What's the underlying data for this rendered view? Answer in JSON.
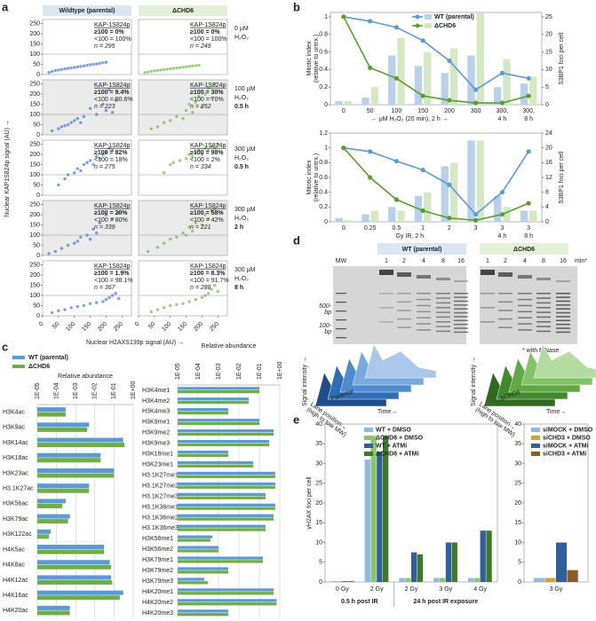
{
  "panel_labels": [
    "a",
    "b",
    "c",
    "d",
    "e"
  ],
  "chart_data": [
    {
      "type": "scatter",
      "ylabel": "Nuclear KAP1S824p signal (AU) →",
      "xlabel": "Nuclear H2AXS139p signal (AU) →",
      "xlim": [
        0,
        280
      ],
      "ylim": [
        0,
        270
      ],
      "xticks": [
        0,
        50,
        100,
        150,
        200,
        250
      ],
      "yticks": [
        0,
        50,
        100,
        150,
        200,
        250
      ],
      "threshold": 100,
      "columns": [
        {
          "name": "Wildtype (parental)",
          "color": "#3b6fd1",
          "header_color": "#dbe6f3"
        },
        {
          "name": "ΔCHD6",
          "color": "#6cb33a",
          "header_color": "#e3efd6"
        }
      ],
      "rows": [
        {
          "label": [
            "0 µM",
            "H₂O₂"
          ],
          "shaded": false
        },
        {
          "label": [
            "100 µM",
            "H₂O₂",
            "0.5 h"
          ],
          "shaded": true
        },
        {
          "label": [
            "300 µM",
            "H₂O₂",
            "0.5 h"
          ],
          "shaded": false
        },
        {
          "label": [
            "300 µM",
            "H₂O₂",
            "2 h"
          ],
          "shaded": true
        },
        {
          "label": [
            "300 µM",
            "H₂O₂",
            "8 h"
          ],
          "shaded": false
        }
      ],
      "panels": [
        {
          "stats": [
            "KAP-1S824p",
            "≥100 = 0%",
            "<100 = 100%",
            "n = 295"
          ],
          "x": [
            20,
            30,
            40,
            50,
            60,
            70,
            80,
            90,
            100,
            110,
            120,
            130,
            140,
            150,
            160,
            170,
            180,
            190,
            200
          ],
          "y": [
            10,
            15,
            20,
            22,
            25,
            28,
            30,
            32,
            35,
            38,
            40,
            42,
            45,
            48,
            50,
            52,
            55,
            58,
            60
          ]
        },
        {
          "stats": [
            "KAP-1S824p",
            "≥100 = 0%",
            "<100 = 100%",
            "n = 249"
          ],
          "x": [
            20,
            30,
            40,
            50,
            60,
            70,
            80,
            90,
            100,
            110,
            120,
            130,
            140,
            150,
            160,
            170,
            180,
            190
          ],
          "y": [
            10,
            12,
            15,
            18,
            20,
            22,
            24,
            26,
            28,
            30,
            32,
            34,
            36,
            38,
            40,
            42,
            44,
            45
          ]
        },
        {
          "stats": [
            "KAP-1S824p",
            "≥100 = 9.4%",
            "<100 = 90.6%",
            "n = 223"
          ],
          "x": [
            30,
            50,
            60,
            70,
            80,
            90,
            100,
            110,
            120,
            130,
            150,
            170,
            190,
            200,
            210,
            220,
            230
          ],
          "y": [
            20,
            30,
            40,
            45,
            50,
            60,
            70,
            80,
            60,
            90,
            130,
            100,
            150,
            120,
            220,
            110,
            170
          ]
        },
        {
          "stats": [
            "KAP-1S824p",
            "≥100 = 30%",
            "<100 = 70%",
            "n = 252"
          ],
          "x": [
            40,
            60,
            80,
            100,
            120,
            140,
            150,
            160,
            170,
            180,
            190,
            200,
            210,
            220,
            230,
            240
          ],
          "y": [
            30,
            40,
            60,
            70,
            90,
            80,
            120,
            150,
            110,
            160,
            190,
            140,
            200,
            230,
            180,
            250
          ]
        },
        {
          "stats": [
            "KAP-1S824p",
            "≥100 = 82%",
            "<100 = 18%",
            "n = 275"
          ],
          "x": [
            50,
            70,
            80,
            100,
            110,
            120,
            130,
            140,
            150,
            160,
            170,
            180,
            190,
            200,
            210,
            220
          ],
          "y": [
            50,
            80,
            100,
            110,
            130,
            120,
            150,
            160,
            170,
            150,
            190,
            180,
            200,
            210,
            230,
            220
          ]
        },
        {
          "stats": [
            "KAP-1S824p",
            "≥100 = 98%",
            "<100 = 2%",
            "n = 334"
          ],
          "x": [
            80,
            100,
            110,
            130,
            150,
            160,
            170,
            180,
            190,
            200,
            210,
            220,
            230,
            240,
            250
          ],
          "y": [
            110,
            150,
            160,
            170,
            180,
            200,
            190,
            210,
            220,
            200,
            230,
            220,
            240,
            230,
            250
          ]
        },
        {
          "stats": [
            "KAP-1S824p",
            "≥100 = 20%",
            "<100 = 80%",
            "n = 339"
          ],
          "x": [
            20,
            40,
            60,
            80,
            100,
            110,
            120,
            140,
            150,
            160,
            170,
            180,
            200,
            220,
            240
          ],
          "y": [
            10,
            20,
            35,
            50,
            60,
            70,
            90,
            100,
            80,
            130,
            110,
            160,
            200,
            180,
            210
          ]
        },
        {
          "stats": [
            "KAP-1S824p",
            "≥100 = 58%",
            "<100 = 42%",
            "n = 221"
          ],
          "x": [
            30,
            60,
            80,
            100,
            120,
            140,
            150,
            160,
            170,
            180,
            200,
            210,
            220,
            230,
            240
          ],
          "y": [
            20,
            40,
            60,
            80,
            90,
            110,
            100,
            140,
            120,
            160,
            150,
            200,
            180,
            220,
            230
          ]
        },
        {
          "stats": [
            "KAP-1S824p",
            "≥100 = 1.9%",
            "<100 = 98.1%",
            "n = 367"
          ],
          "x": [
            30,
            50,
            70,
            90,
            110,
            130,
            150,
            170,
            190,
            200,
            210,
            220,
            230,
            240
          ],
          "y": [
            15,
            25,
            30,
            40,
            45,
            50,
            60,
            65,
            70,
            80,
            90,
            100,
            110,
            85
          ]
        },
        {
          "stats": [
            "KAP-1S824p",
            "≥100 = 8.3%",
            "<100 = 91.7%",
            "n = 288"
          ],
          "x": [
            40,
            60,
            80,
            100,
            120,
            140,
            160,
            180,
            200,
            210,
            220,
            230,
            240,
            250
          ],
          "y": [
            20,
            30,
            40,
            50,
            55,
            60,
            70,
            80,
            90,
            100,
            110,
            130,
            150,
            120
          ]
        }
      ]
    },
    {
      "type": "combo",
      "legend": true,
      "categories": [
        "0",
        "50",
        "100",
        "150",
        "200",
        "300",
        "300,",
        "300,"
      ],
      "subcategories": [
        null,
        null,
        null,
        null,
        null,
        null,
        "4 h",
        "8 h"
      ],
      "xlabel": "← µM H₂O₂ (20 min), 2 h →",
      "ylabel": [
        "Mitotic index",
        "(relative to untrx.)"
      ],
      "y2label": "53BP1 foci per cell",
      "ylim": [
        0,
        1.05
      ],
      "yticks": [
        0,
        0.2,
        0.4,
        0.6,
        0.8,
        1
      ],
      "y2lim": [
        0,
        26.25
      ],
      "y2ticks": [
        0,
        5,
        10,
        15,
        20,
        25
      ],
      "series": [
        {
          "name": "WT (parental)",
          "color": "#5b9bd5",
          "values": [
            1,
            0.95,
            0.88,
            0.73,
            0.5,
            0.17,
            0.36,
            0.3
          ]
        },
        {
          "name": "ΔCHD6",
          "color": "#5a9e2f",
          "values": [
            1,
            0.42,
            0.3,
            0.1,
            0.05,
            0.02,
            0.02,
            0.1
          ]
        }
      ],
      "bar_series": [
        {
          "color": "#b9d0ea",
          "axis": "y2",
          "values": [
            1,
            2,
            14,
            11,
            9,
            14,
            5,
            6
          ]
        },
        {
          "color": "#d5e8c4",
          "axis": "y2",
          "values": [
            1,
            5,
            19,
            15,
            16,
            26,
            13,
            8
          ]
        }
      ]
    },
    {
      "type": "combo",
      "legend": false,
      "categories": [
        "0",
        "0.25",
        "0.5",
        "1",
        "2",
        "3",
        "3",
        "3"
      ],
      "subcategories": [
        null,
        null,
        null,
        null,
        null,
        null,
        "4 h",
        "8 h"
      ],
      "xlabel": "Gy IR, 2 h",
      "ylabel": [
        "Mitotic index",
        "(relative to untrx.)"
      ],
      "y2label": "53BP1 foci per cell",
      "ylim": [
        0,
        1.2
      ],
      "yticks": [
        0,
        0.2,
        0.4,
        0.6,
        0.8,
        1,
        1.2
      ],
      "y2lim": [
        0,
        24
      ],
      "y2ticks": [
        0,
        4,
        8,
        12,
        16,
        20,
        24
      ],
      "series": [
        {
          "name": "WT (parental)",
          "color": "#5b9bd5",
          "values": [
            1,
            0.95,
            0.82,
            0.7,
            0.5,
            0.1,
            0.4,
            0.95
          ]
        },
        {
          "name": "ΔCHD6",
          "color": "#5a9e2f",
          "values": [
            1,
            0.6,
            0.3,
            0.15,
            0.05,
            0.02,
            0.1,
            0.25
          ]
        }
      ],
      "bar_series": [
        {
          "color": "#b9d0ea",
          "axis": "y2",
          "values": [
            1,
            2,
            4,
            7,
            15,
            22,
            7,
            3
          ]
        },
        {
          "color": "#d5e8c4",
          "axis": "y2",
          "values": [
            0.5,
            3,
            3,
            8,
            16,
            22,
            4,
            3
          ]
        }
      ]
    },
    {
      "type": "hbar",
      "title": "Relative abundance",
      "log": true,
      "legend": true,
      "xlim": [
        1e-05,
        1
      ],
      "xticks": [
        {
          "value": 1e-05,
          "label": "1E-05"
        },
        {
          "value": 0.0001,
          "label": "1E-04"
        },
        {
          "value": 0.001,
          "label": "1E-03"
        },
        {
          "value": 0.01,
          "label": "1E-02"
        },
        {
          "value": 0.1,
          "label": "1E-01"
        },
        {
          "value": 1,
          "label": "1E+00"
        }
      ],
      "categories": [
        "H3K4ac",
        "H3K9ac",
        "H3K14ac",
        "H3K18ac",
        "H3K23ac",
        "H3.1K27ac",
        "H3K56ac",
        "H3K79ac",
        "H3K122ac",
        "H4K5ac",
        "H4K8ac",
        "H4K12ac",
        "H4K16ac",
        "H4K20ac"
      ],
      "series": [
        {
          "name": "WT (parental)",
          "color": "#5b9bd5",
          "values": [
            0.0003,
            0.005,
            0.3,
            0.02,
            0.1,
            0.005,
            0.0003,
            0.0005,
            5e-05,
            0.03,
            0.06,
            0.07,
            0.3,
            0.0005
          ]
        },
        {
          "name": "ΔCHD6",
          "color": "#70ad47",
          "values": [
            0.0003,
            0.004,
            0.35,
            0.02,
            0.1,
            0.005,
            0.0002,
            0.0004,
            4e-05,
            0.03,
            0.07,
            0.08,
            0.2,
            0.0005
          ]
        }
      ]
    },
    {
      "type": "hbar",
      "title": "Relative abundance",
      "log": true,
      "legend": false,
      "xlim": [
        1e-05,
        1
      ],
      "xticks": [
        {
          "value": 1e-05,
          "label": "1E-05"
        },
        {
          "value": 0.0001,
          "label": "1E-04"
        },
        {
          "value": 0.001,
          "label": "1E-03"
        },
        {
          "value": 0.01,
          "label": "1E-02"
        },
        {
          "value": 0.1,
          "label": "1E-01"
        },
        {
          "value": 1,
          "label": "1E+00"
        }
      ],
      "categories": [
        "H3K4me1",
        "H3K4me2",
        "H3K4me3",
        "H3K9me1",
        "H3K9me2",
        "H3K9me3",
        "H3K18me1",
        "H3K23me1",
        "H3.1K27me1",
        "H3.1K27me2",
        "H3.1K27me3",
        "H3.1K36me1",
        "H3.1K36me2",
        "H3.1K36me3",
        "H3K56me1",
        "H3K56me2",
        "H3K79me1",
        "H3K79me2",
        "H3K79me3",
        "H4K20me1",
        "H4K20me2",
        "H4K20me3"
      ],
      "series": [
        {
          "color": "#5b9bd5",
          "values": [
            0.1,
            0.03,
            0.003,
            0.1,
            0.5,
            0.3,
            0.003,
            0.05,
            0.6,
            0.6,
            0.2,
            0.6,
            0.5,
            0.2,
            0.0005,
            0.001,
            0.15,
            0.003,
            0.0002,
            0.5,
            0.7,
            0.003
          ]
        },
        {
          "color": "#70ad47",
          "values": [
            0.1,
            0.03,
            0.003,
            0.1,
            0.5,
            0.3,
            0.003,
            0.05,
            0.6,
            0.6,
            0.2,
            0.6,
            0.5,
            0.2,
            0.0004,
            0.001,
            0.15,
            0.003,
            0.0003,
            0.5,
            0.7,
            0.003
          ]
        }
      ]
    },
    {
      "type": "grouped",
      "ylabel": "γH2AX foci per cell",
      "ylim": [
        0,
        40
      ],
      "yticks": [
        0,
        5,
        10,
        15,
        20,
        25,
        30,
        35,
        40
      ],
      "groups": [
        {
          "label": "0.5 h post IR",
          "categories": [
            "0 Gy",
            "2 Gy"
          ]
        },
        {
          "label": "24 h post IR exposure",
          "categories": [
            "2 Gy",
            "3 Gy",
            "4 Gy"
          ]
        }
      ],
      "series": [
        {
          "name": "WT + DMSO",
          "color": "#8fb9e3",
          "values": [
            0.2,
            31,
            1,
            1,
            1
          ]
        },
        {
          "name": "ΔCHD6 + DMSO",
          "color": "#8cc56a",
          "values": [
            0.2,
            37,
            1,
            1,
            1
          ]
        },
        {
          "name": "WT + ATMi",
          "color": "#2f5f9e",
          "values": [
            0.2,
            33,
            7.5,
            10,
            13
          ]
        },
        {
          "name": "ΔCHD6 + ATMi",
          "color": "#3d7a26",
          "values": [
            0.2,
            37,
            7,
            10,
            13
          ]
        }
      ]
    },
    {
      "type": "grouped",
      "ylim": [
        0,
        40
      ],
      "yticks": [
        0,
        5,
        10,
        15,
        20,
        25,
        30,
        35,
        40
      ],
      "groups": [
        {
          "categories": [
            "3 Gy"
          ]
        }
      ],
      "series": [
        {
          "name": "siMOCK + DMSO",
          "color": "#8fb9e3",
          "values": [
            1
          ]
        },
        {
          "name": "siCHD3 + DMSO",
          "color": "#d7a52a",
          "values": [
            1
          ]
        },
        {
          "name": "siMOCK + ATMi",
          "color": "#2f5f9e",
          "values": [
            10
          ]
        },
        {
          "name": "siCHD3 + ATMi",
          "color": "#8a5a1e",
          "values": [
            3
          ]
        }
      ]
    }
  ],
  "gel": {
    "headers": [
      "WT (parental)",
      "ΔCHD6"
    ],
    "mw": "MW",
    "lanes": [
      "1",
      "2",
      "4",
      "8",
      "16"
    ],
    "unit": "min*",
    "markers": [
      {
        "label": "500-",
        "unit": "bp"
      },
      {
        "label": "100-",
        "unit": "bp"
      }
    ],
    "note": "* with MNase",
    "plot_labels": {
      "y": "Signal intensity →",
      "x": [
        "Lane position→",
        "(high to low MW)"
      ],
      "z": "Time→"
    },
    "plot_names": [
      "Parental",
      "ΔCHD6"
    ]
  }
}
